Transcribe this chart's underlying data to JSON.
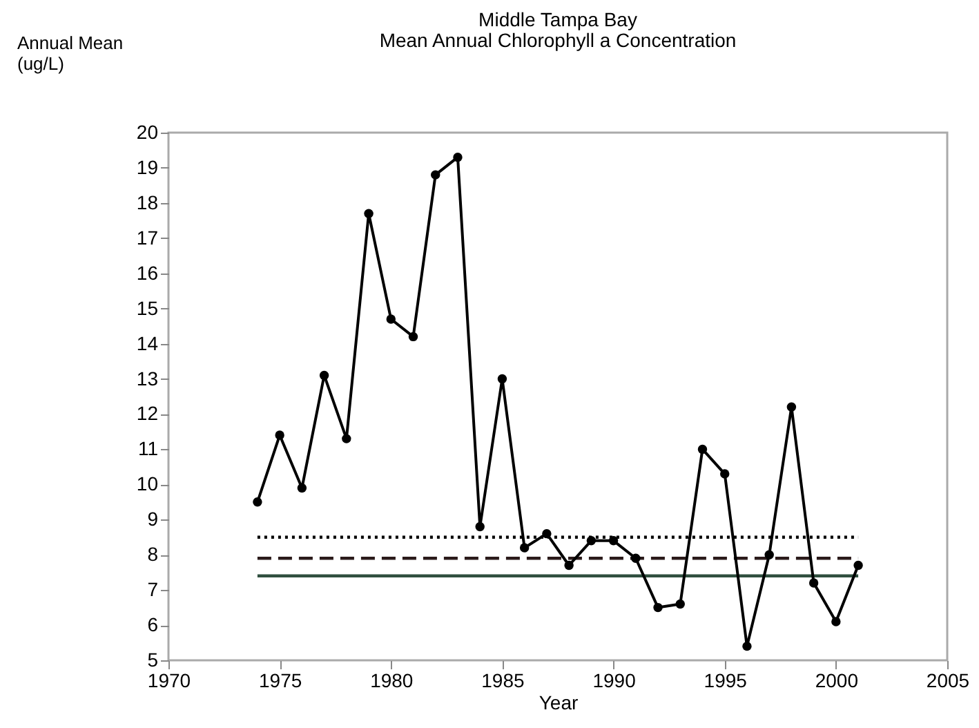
{
  "chart_data": {
    "type": "line",
    "title": "Middle  Tampa Bay",
    "subtitle": "Mean Annual Chlorophyll a Concentration",
    "xlabel": "Year",
    "ylabel": "Annual Mean\n(ug/L)",
    "x": [
      1974,
      1975,
      1976,
      1977,
      1978,
      1979,
      1980,
      1981,
      1982,
      1983,
      1984,
      1985,
      1986,
      1987,
      1988,
      1989,
      1990,
      1991,
      1992,
      1993,
      1994,
      1995,
      1996,
      1997,
      1998,
      1999,
      2000,
      2001
    ],
    "series": [
      {
        "color": "#000000",
        "values": [
          9.5,
          11.4,
          9.9,
          13.1,
          11.3,
          17.7,
          14.7,
          14.2,
          18.8,
          19.3,
          8.8,
          13.0,
          8.2,
          8.6,
          7.7,
          8.4,
          8.4,
          7.9,
          6.5,
          6.6,
          11.0,
          10.3,
          5.4,
          8.0,
          12.2,
          7.2,
          6.1,
          7.7
        ]
      }
    ],
    "ref_lines": [
      {
        "axis": "y",
        "value": 8.5,
        "line_style": "dotted",
        "color": "#000000"
      },
      {
        "axis": "y",
        "value": 7.9,
        "line_style": "dashed",
        "color": "#2a1a1a"
      },
      {
        "axis": "y",
        "value": 7.4,
        "line_style": "solid",
        "color": "#2f4f3f"
      }
    ],
    "xlim": [
      1970,
      2005
    ],
    "xticks": [
      1970,
      1975,
      1980,
      1985,
      1990,
      1995,
      2000,
      2005
    ],
    "ylim": [
      5,
      20
    ],
    "yticks": [
      5,
      6,
      7,
      8,
      9,
      10,
      11,
      12,
      13,
      14,
      15,
      16,
      17,
      18,
      19,
      20
    ],
    "marker": "circle",
    "line_style": "solid"
  }
}
